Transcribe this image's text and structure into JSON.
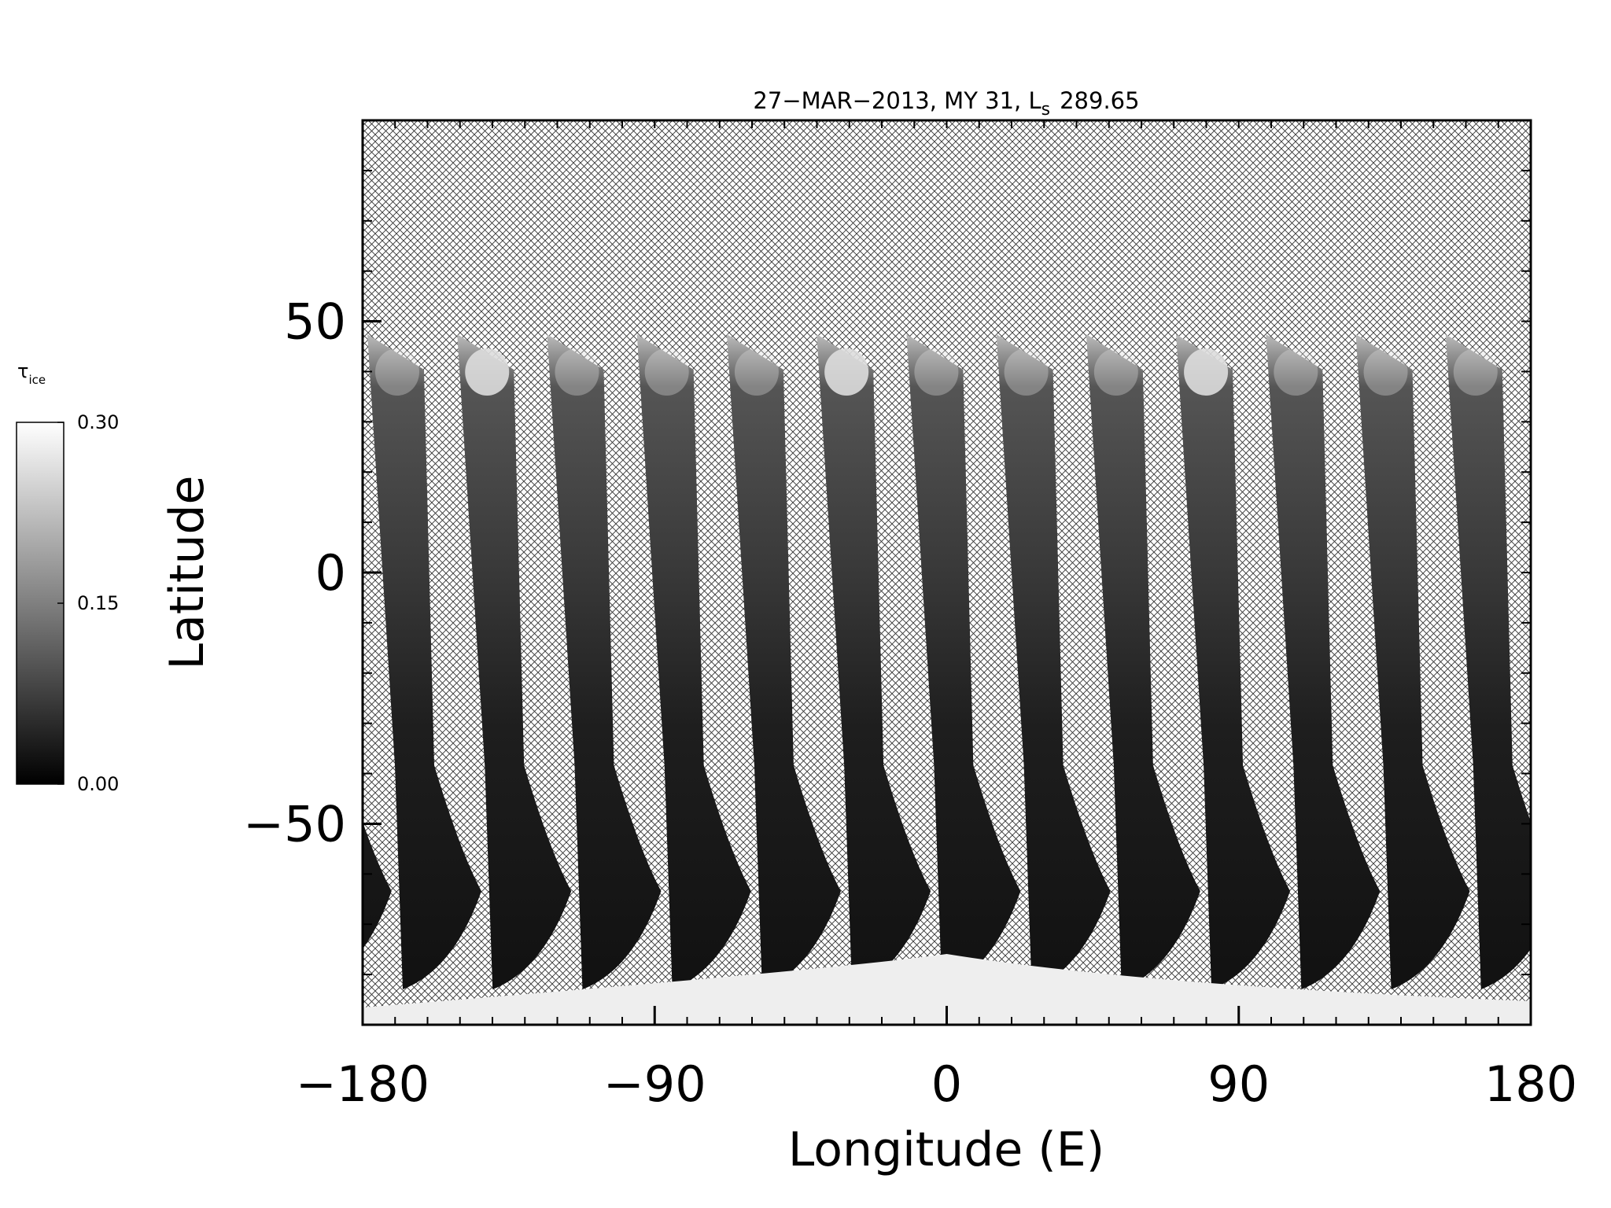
{
  "chart_data": {
    "type": "map",
    "title": {
      "text": "27−MAR−2013, MY 31,  L",
      "subscript": "s",
      "value_text": "289.65"
    },
    "x_label": "Longitude (E)",
    "y_label": "Latitude",
    "xlim": [
      -180,
      180
    ],
    "xticks": [
      {
        "value": -180,
        "label": "−180"
      },
      {
        "value": -90,
        "label": "−90"
      },
      0,
      90,
      180
    ],
    "ylim": [
      -90,
      90
    ],
    "yticks": [
      {
        "value": -50,
        "label": "−50"
      },
      0,
      50
    ],
    "colorbar": {
      "label": "τ",
      "label_subscript": "ice",
      "lim": [
        0,
        0.3
      ],
      "ticks": [
        {
          "value": 0,
          "label": "0.00"
        },
        {
          "value": 0.15,
          "label": "0.15"
        },
        {
          "value": 0.3,
          "label": "0.30"
        }
      ]
    }
  }
}
